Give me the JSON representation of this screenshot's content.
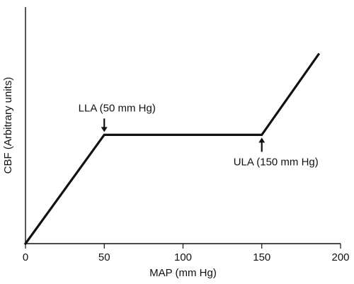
{
  "chart_data": {
    "type": "line",
    "xlabel": "MAP (mm Hg)",
    "ylabel": "CBF (Arbitrary units)",
    "xlim": [
      0,
      200
    ],
    "ylim": [
      0,
      100
    ],
    "x_ticks": [
      0,
      50,
      100,
      150,
      200
    ],
    "x_tick_labels": [
      "0",
      "50",
      "100",
      "150",
      "200"
    ],
    "grid": false,
    "legend": "none",
    "series": [
      {
        "points": [
          {
            "x": 0,
            "y": 0
          },
          {
            "x": 50,
            "y": 46
          },
          {
            "x": 150,
            "y": 46
          },
          {
            "x": 186,
            "y": 80
          }
        ]
      }
    ],
    "annotations": [
      {
        "text": "LLA (50 mm Hg)",
        "x": 50,
        "y": 46,
        "arrow_direction": "down",
        "label_side": "above"
      },
      {
        "text": "ULA (150 mm Hg)",
        "x": 150,
        "y": 46,
        "arrow_direction": "up",
        "label_side": "below"
      }
    ]
  },
  "colors": {
    "line": "#111111",
    "axes": "#111111",
    "text": "#111111",
    "background": "#ffffff"
  }
}
